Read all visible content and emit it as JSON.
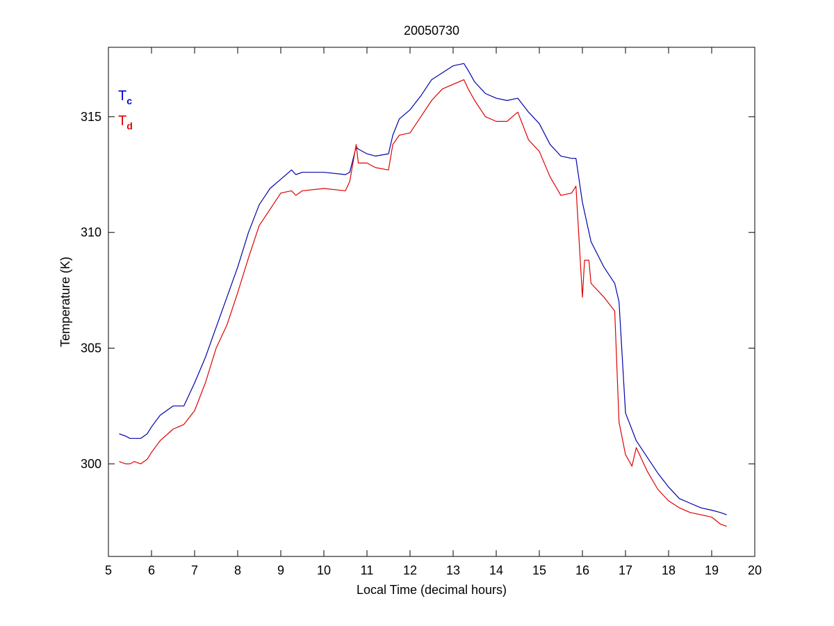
{
  "chart_data": {
    "type": "line",
    "title": "20050730",
    "xlabel": "Local Time (decimal hours)",
    "ylabel": "Temperature (K)",
    "xlim": [
      5,
      20
    ],
    "ylim": [
      296,
      318
    ],
    "xticks": [
      5,
      6,
      7,
      8,
      9,
      10,
      11,
      12,
      13,
      14,
      15,
      16,
      17,
      18,
      19,
      20
    ],
    "yticks": [
      300,
      305,
      310,
      315
    ],
    "grid": false,
    "legend_position": "top-left",
    "legend": [
      {
        "main": "T",
        "sub": "c",
        "color": "#0000cc"
      },
      {
        "main": "T",
        "sub": "d",
        "color": "#dd0000"
      }
    ],
    "series": [
      {
        "color": "#0000aa",
        "x": [
          5.25,
          5.4,
          5.5,
          5.6,
          5.75,
          5.9,
          6.0,
          6.2,
          6.5,
          6.75,
          7.0,
          7.25,
          7.5,
          7.75,
          8.0,
          8.25,
          8.5,
          8.75,
          9.0,
          9.25,
          9.35,
          9.5,
          10.0,
          10.5,
          10.6,
          10.75,
          10.8,
          11.0,
          11.2,
          11.5,
          11.6,
          11.75,
          12.0,
          12.25,
          12.5,
          12.75,
          13.0,
          13.25,
          13.35,
          13.5,
          13.75,
          14.0,
          14.25,
          14.5,
          14.75,
          15.0,
          15.25,
          15.5,
          15.75,
          15.85,
          16.0,
          16.2,
          16.5,
          16.75,
          16.85,
          17.0,
          17.25,
          17.5,
          17.75,
          18.0,
          18.25,
          18.5,
          18.75,
          19.0,
          19.2,
          19.35
        ],
        "values": [
          301.3,
          301.2,
          301.1,
          301.1,
          301.1,
          301.3,
          301.6,
          302.1,
          302.5,
          302.5,
          303.5,
          304.6,
          305.9,
          307.2,
          308.5,
          310.0,
          311.2,
          311.9,
          312.3,
          312.7,
          312.5,
          312.6,
          312.6,
          312.5,
          312.6,
          313.7,
          313.6,
          313.4,
          313.3,
          313.4,
          314.2,
          314.9,
          315.3,
          315.9,
          316.6,
          316.9,
          317.2,
          317.3,
          317.0,
          316.5,
          316.0,
          315.8,
          315.7,
          315.8,
          315.2,
          314.7,
          313.8,
          313.3,
          313.2,
          313.2,
          311.3,
          309.6,
          308.5,
          307.8,
          307.0,
          302.2,
          301.0,
          300.3,
          299.6,
          299.0,
          298.5,
          298.3,
          298.1,
          298.0,
          297.9,
          297.8
        ]
      },
      {
        "color": "#dd0000",
        "x": [
          5.25,
          5.4,
          5.5,
          5.6,
          5.75,
          5.9,
          6.0,
          6.2,
          6.5,
          6.75,
          7.0,
          7.25,
          7.5,
          7.75,
          8.0,
          8.25,
          8.5,
          8.75,
          9.0,
          9.25,
          9.35,
          9.5,
          10.0,
          10.5,
          10.6,
          10.75,
          10.8,
          11.0,
          11.2,
          11.5,
          11.6,
          11.75,
          12.0,
          12.25,
          12.5,
          12.75,
          13.0,
          13.25,
          13.35,
          13.5,
          13.75,
          14.0,
          14.25,
          14.5,
          14.75,
          15.0,
          15.25,
          15.5,
          15.75,
          15.85,
          16.0,
          16.05,
          16.15,
          16.2,
          16.5,
          16.75,
          16.85,
          17.0,
          17.15,
          17.25,
          17.5,
          17.75,
          18.0,
          18.25,
          18.5,
          18.75,
          19.0,
          19.2,
          19.35
        ],
        "values": [
          300.1,
          300.0,
          300.0,
          300.1,
          300.0,
          300.2,
          300.5,
          301.0,
          301.5,
          301.7,
          302.3,
          303.5,
          305.0,
          306.0,
          307.4,
          308.9,
          310.3,
          311.0,
          311.7,
          311.8,
          311.6,
          311.8,
          311.9,
          311.8,
          312.2,
          313.8,
          313.0,
          313.0,
          312.8,
          312.7,
          313.8,
          314.2,
          314.3,
          315.0,
          315.7,
          316.2,
          316.4,
          316.6,
          316.2,
          315.7,
          315.0,
          314.8,
          314.8,
          315.2,
          314.0,
          313.5,
          312.4,
          311.6,
          311.7,
          312.0,
          307.2,
          308.8,
          308.8,
          307.8,
          307.2,
          306.6,
          301.8,
          300.4,
          299.9,
          300.7,
          299.7,
          298.9,
          298.4,
          298.1,
          297.9,
          297.8,
          297.7,
          297.4,
          297.3
        ]
      }
    ]
  }
}
